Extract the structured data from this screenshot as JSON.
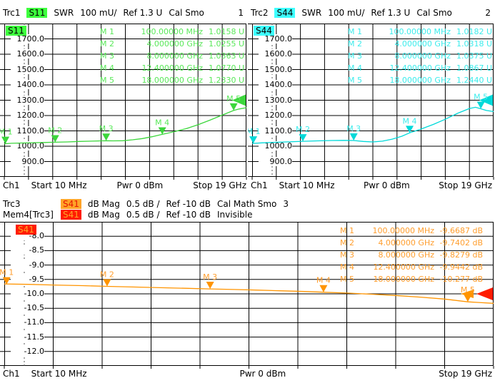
{
  "colors": {
    "background": "#ffffff",
    "grid": "#000000",
    "dashed_line": "#555555"
  },
  "panels": [
    {
      "header": {
        "trace": "Trc1",
        "meas": "S11",
        "format": "SWR",
        "scale": "100 mU/",
        "ref": "Ref 1.3 U",
        "cal": "Cal Smo",
        "channel": "1"
      },
      "colors": {
        "trace": "#3cd63c",
        "text": "#5ae85a"
      },
      "badge": {
        "bg": "#3dff3d",
        "fg": "#000000"
      },
      "axis": {
        "ch": "Ch1",
        "start": "Start 10 MHz",
        "pwr": "Pwr 0 dBm",
        "stop": "Stop 19 GHz"
      },
      "chart_data": {
        "type": "line",
        "y_range": [
          1800,
          800
        ],
        "y_unit": "mU",
        "y_labels": [
          "1700.0",
          "1600.0",
          "1500.0",
          "1400.0",
          "1300.0",
          "1200.0",
          "1100.0",
          "1000.0",
          "900.0"
        ],
        "ref_level": 1300,
        "x_start": "10 MHz",
        "x_stop": "19 GHz",
        "points": [
          [
            0,
            1016
          ],
          [
            0.03,
            1019
          ],
          [
            0.07,
            1021
          ],
          [
            0.12,
            1023
          ],
          [
            0.16,
            1024
          ],
          [
            0.21,
            1026
          ],
          [
            0.26,
            1028
          ],
          [
            0.31,
            1031
          ],
          [
            0.36,
            1033
          ],
          [
            0.42,
            1036
          ],
          [
            0.45,
            1035
          ],
          [
            0.49,
            1036
          ],
          [
            0.53,
            1042
          ],
          [
            0.57,
            1050
          ],
          [
            0.61,
            1062
          ],
          [
            0.652,
            1077
          ],
          [
            0.7,
            1094
          ],
          [
            0.75,
            1114
          ],
          [
            0.8,
            1140
          ],
          [
            0.85,
            1170
          ],
          [
            0.9,
            1203
          ],
          [
            0.947,
            1233
          ],
          [
            0.97,
            1243
          ],
          [
            1,
            1251
          ]
        ],
        "markers": [
          {
            "name": "M 1",
            "freq": "100.00000 MHz",
            "value": "1.0158 U",
            "x": 0.0047,
            "y": 1015.8
          },
          {
            "name": "M 2",
            "freq": "4.000000 GHz",
            "value": "1.0255 U",
            "x": 0.2101,
            "y": 1025.5
          },
          {
            "name": "M 3",
            "freq": "8.000000 GHz",
            "value": "1.0363 U",
            "x": 0.4207,
            "y": 1036.3
          },
          {
            "name": "M 4",
            "freq": "12.400000 GHz",
            "value": "1.0770 U",
            "x": 0.6524,
            "y": 1077.0
          },
          {
            "name": "M 5",
            "freq": "18.000000 GHz",
            "value": "1.2330 U",
            "x": 0.9473,
            "y": 1233.0
          }
        ]
      }
    },
    {
      "header": {
        "trace": "Trc2",
        "meas": "S44",
        "format": "SWR",
        "scale": "100 mU/",
        "ref": "Ref 1.3 U",
        "cal": "Cal Smo",
        "channel": "2"
      },
      "colors": {
        "trace": "#00d9d9",
        "text": "#3cecec"
      },
      "badge": {
        "bg": "#3dffff",
        "fg": "#000000"
      },
      "axis": {
        "ch": "Ch1",
        "start": "Start 10 MHz",
        "pwr": "Pwr 0 dBm",
        "stop": "Stop 19 GHz"
      },
      "chart_data": {
        "type": "line",
        "y_range": [
          1800,
          800
        ],
        "y_unit": "mU",
        "y_labels": [
          "1700.0",
          "1600.0",
          "1500.0",
          "1400.0",
          "1300.0",
          "1200.0",
          "1100.0",
          "1000.0",
          "900.0"
        ],
        "ref_level": 1300,
        "x_start": "10 MHz",
        "x_stop": "19 GHz",
        "points": [
          [
            0,
            1018
          ],
          [
            0.04,
            1022
          ],
          [
            0.09,
            1025
          ],
          [
            0.14,
            1028
          ],
          [
            0.21,
            1032
          ],
          [
            0.27,
            1035
          ],
          [
            0.33,
            1037
          ],
          [
            0.38,
            1038
          ],
          [
            0.42,
            1037
          ],
          [
            0.46,
            1031
          ],
          [
            0.5,
            1028
          ],
          [
            0.54,
            1033
          ],
          [
            0.58,
            1046
          ],
          [
            0.62,
            1065
          ],
          [
            0.652,
            1087
          ],
          [
            0.7,
            1112
          ],
          [
            0.75,
            1142
          ],
          [
            0.8,
            1176
          ],
          [
            0.85,
            1214
          ],
          [
            0.9,
            1246
          ],
          [
            0.925,
            1254
          ],
          [
            0.947,
            1244
          ],
          [
            0.97,
            1233
          ],
          [
            1,
            1226
          ]
        ],
        "markers": [
          {
            "name": "M 1",
            "freq": "100.00000 MHz",
            "value": "1.0182 U",
            "x": 0.0047,
            "y": 1018.2
          },
          {
            "name": "M 2",
            "freq": "4.000000 GHz",
            "value": "1.0318 U",
            "x": 0.2101,
            "y": 1031.8
          },
          {
            "name": "M 3",
            "freq": "8.000000 GHz",
            "value": "1.0375 U",
            "x": 0.4207,
            "y": 1037.5
          },
          {
            "name": "M 4",
            "freq": "12.400000 GHz",
            "value": "1.0867 U",
            "x": 0.6524,
            "y": 1086.7
          },
          {
            "name": "M 5",
            "freq": "18.000000 GHz",
            "value": "1.2440 U",
            "x": 0.9473,
            "y": 1244.0
          }
        ]
      }
    },
    {
      "header": {
        "trace": "Trc3",
        "meas": "S41",
        "format": "dB Mag",
        "scale": "0.5 dB /",
        "ref": "Ref -10 dB",
        "cal": "Cal Math Smo",
        "channel": "3"
      },
      "header_mem": {
        "trace": "Mem4[Trc3]",
        "meas": "S41",
        "format": "dB Mag",
        "scale": "0.5 dB /",
        "ref": "Ref -10 dB",
        "cal": "Invisible"
      },
      "colors": {
        "trace": "#ff9400",
        "text": "#ff9e2e"
      },
      "badge": {
        "bg": "#ffa428",
        "fg": "#e61400"
      },
      "mem_badge": {
        "bg": "#ff1c00",
        "fg": "#ffa428"
      },
      "mem_color": "#ff1c00",
      "axis": {
        "ch": "Ch1",
        "start": "Start 10 MHz",
        "pwr": "Pwr 0 dBm",
        "stop": "Stop 19 GHz"
      },
      "chart_data": {
        "type": "line",
        "y_range": [
          -7.5,
          -12.5
        ],
        "y_unit": "dB",
        "y_labels": [
          "-8.0",
          "-8.5",
          "-9.0",
          "-9.5",
          "-10.0",
          "-10.5",
          "-11.0",
          "-11.5",
          "-12.0"
        ],
        "ref_level": -10,
        "x_start": "10 MHz",
        "x_stop": "19 GHz",
        "points": [
          [
            0,
            -9.655
          ],
          [
            0.05,
            -9.672
          ],
          [
            0.1,
            -9.692
          ],
          [
            0.16,
            -9.716
          ],
          [
            0.21,
            -9.74
          ],
          [
            0.27,
            -9.766
          ],
          [
            0.32,
            -9.788
          ],
          [
            0.37,
            -9.808
          ],
          [
            0.42,
            -9.828
          ],
          [
            0.47,
            -9.849
          ],
          [
            0.52,
            -9.872
          ],
          [
            0.57,
            -9.897
          ],
          [
            0.62,
            -9.921
          ],
          [
            0.652,
            -9.944
          ],
          [
            0.7,
            -9.974
          ],
          [
            0.75,
            -10.012
          ],
          [
            0.8,
            -10.058
          ],
          [
            0.85,
            -10.115
          ],
          [
            0.9,
            -10.18
          ],
          [
            0.947,
            -10.277
          ],
          [
            0.97,
            -10.3
          ],
          [
            1,
            -10.33
          ]
        ],
        "markers": [
          {
            "name": "M 1",
            "freq": "100.00000 MHz",
            "value": "-9.6687 dB",
            "x": 0.0047,
            "y": -9.6687
          },
          {
            "name": "M 2",
            "freq": "4.000000 GHz",
            "value": "-9.7402 dB",
            "x": 0.2101,
            "y": -9.7402
          },
          {
            "name": "M 3",
            "freq": "8.000000 GHz",
            "value": "-9.8279 dB",
            "x": 0.4207,
            "y": -9.8279
          },
          {
            "name": "M 4",
            "freq": "12.400000 GHz",
            "value": "-9.9442 dB",
            "x": 0.6524,
            "y": -9.9442
          },
          {
            "name": "M 5",
            "freq": "18.000000 GHz",
            "value": "-10.277 dB",
            "x": 0.9473,
            "y": -10.277
          }
        ]
      }
    }
  ]
}
